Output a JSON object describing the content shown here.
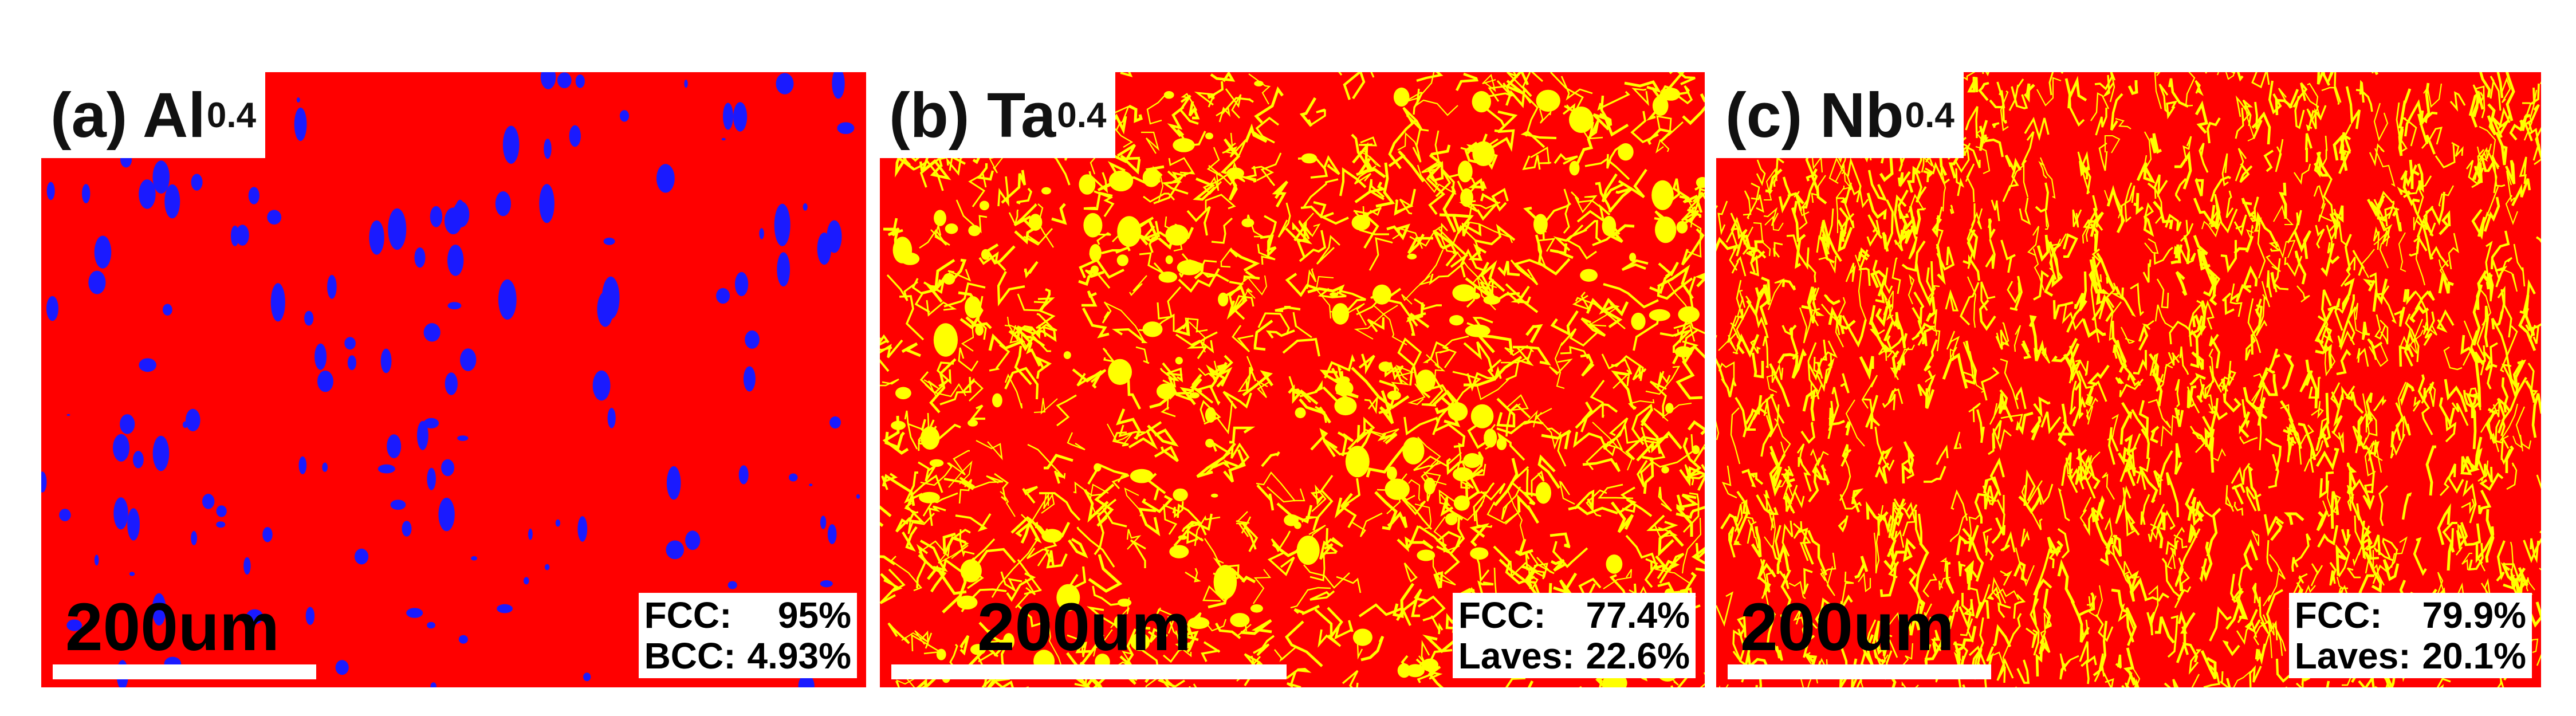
{
  "colors": {
    "fcc": "#ff0000",
    "bcc": "#1a1aff",
    "laves": "#ffff00",
    "background": "#ffffff"
  },
  "panels": [
    {
      "label": "(a) Al",
      "subscript": "0.4",
      "scale_bar": "200um",
      "phases": [
        {
          "name": "FCC:",
          "value": "95%"
        },
        {
          "name": "BCC:",
          "value": "4.93%"
        }
      ]
    },
    {
      "label": "(b) Ta",
      "subscript": "0.4",
      "scale_bar": "200um",
      "phases": [
        {
          "name": "FCC:",
          "value": "77.4%"
        },
        {
          "name": "Laves:",
          "value": "22.6%"
        }
      ]
    },
    {
      "label": "(c) Nb",
      "subscript": "0.4",
      "scale_bar": "200um",
      "phases": [
        {
          "name": "FCC:",
          "value": "79.9%"
        },
        {
          "name": "Laves:",
          "value": "20.1%"
        }
      ]
    }
  ]
}
